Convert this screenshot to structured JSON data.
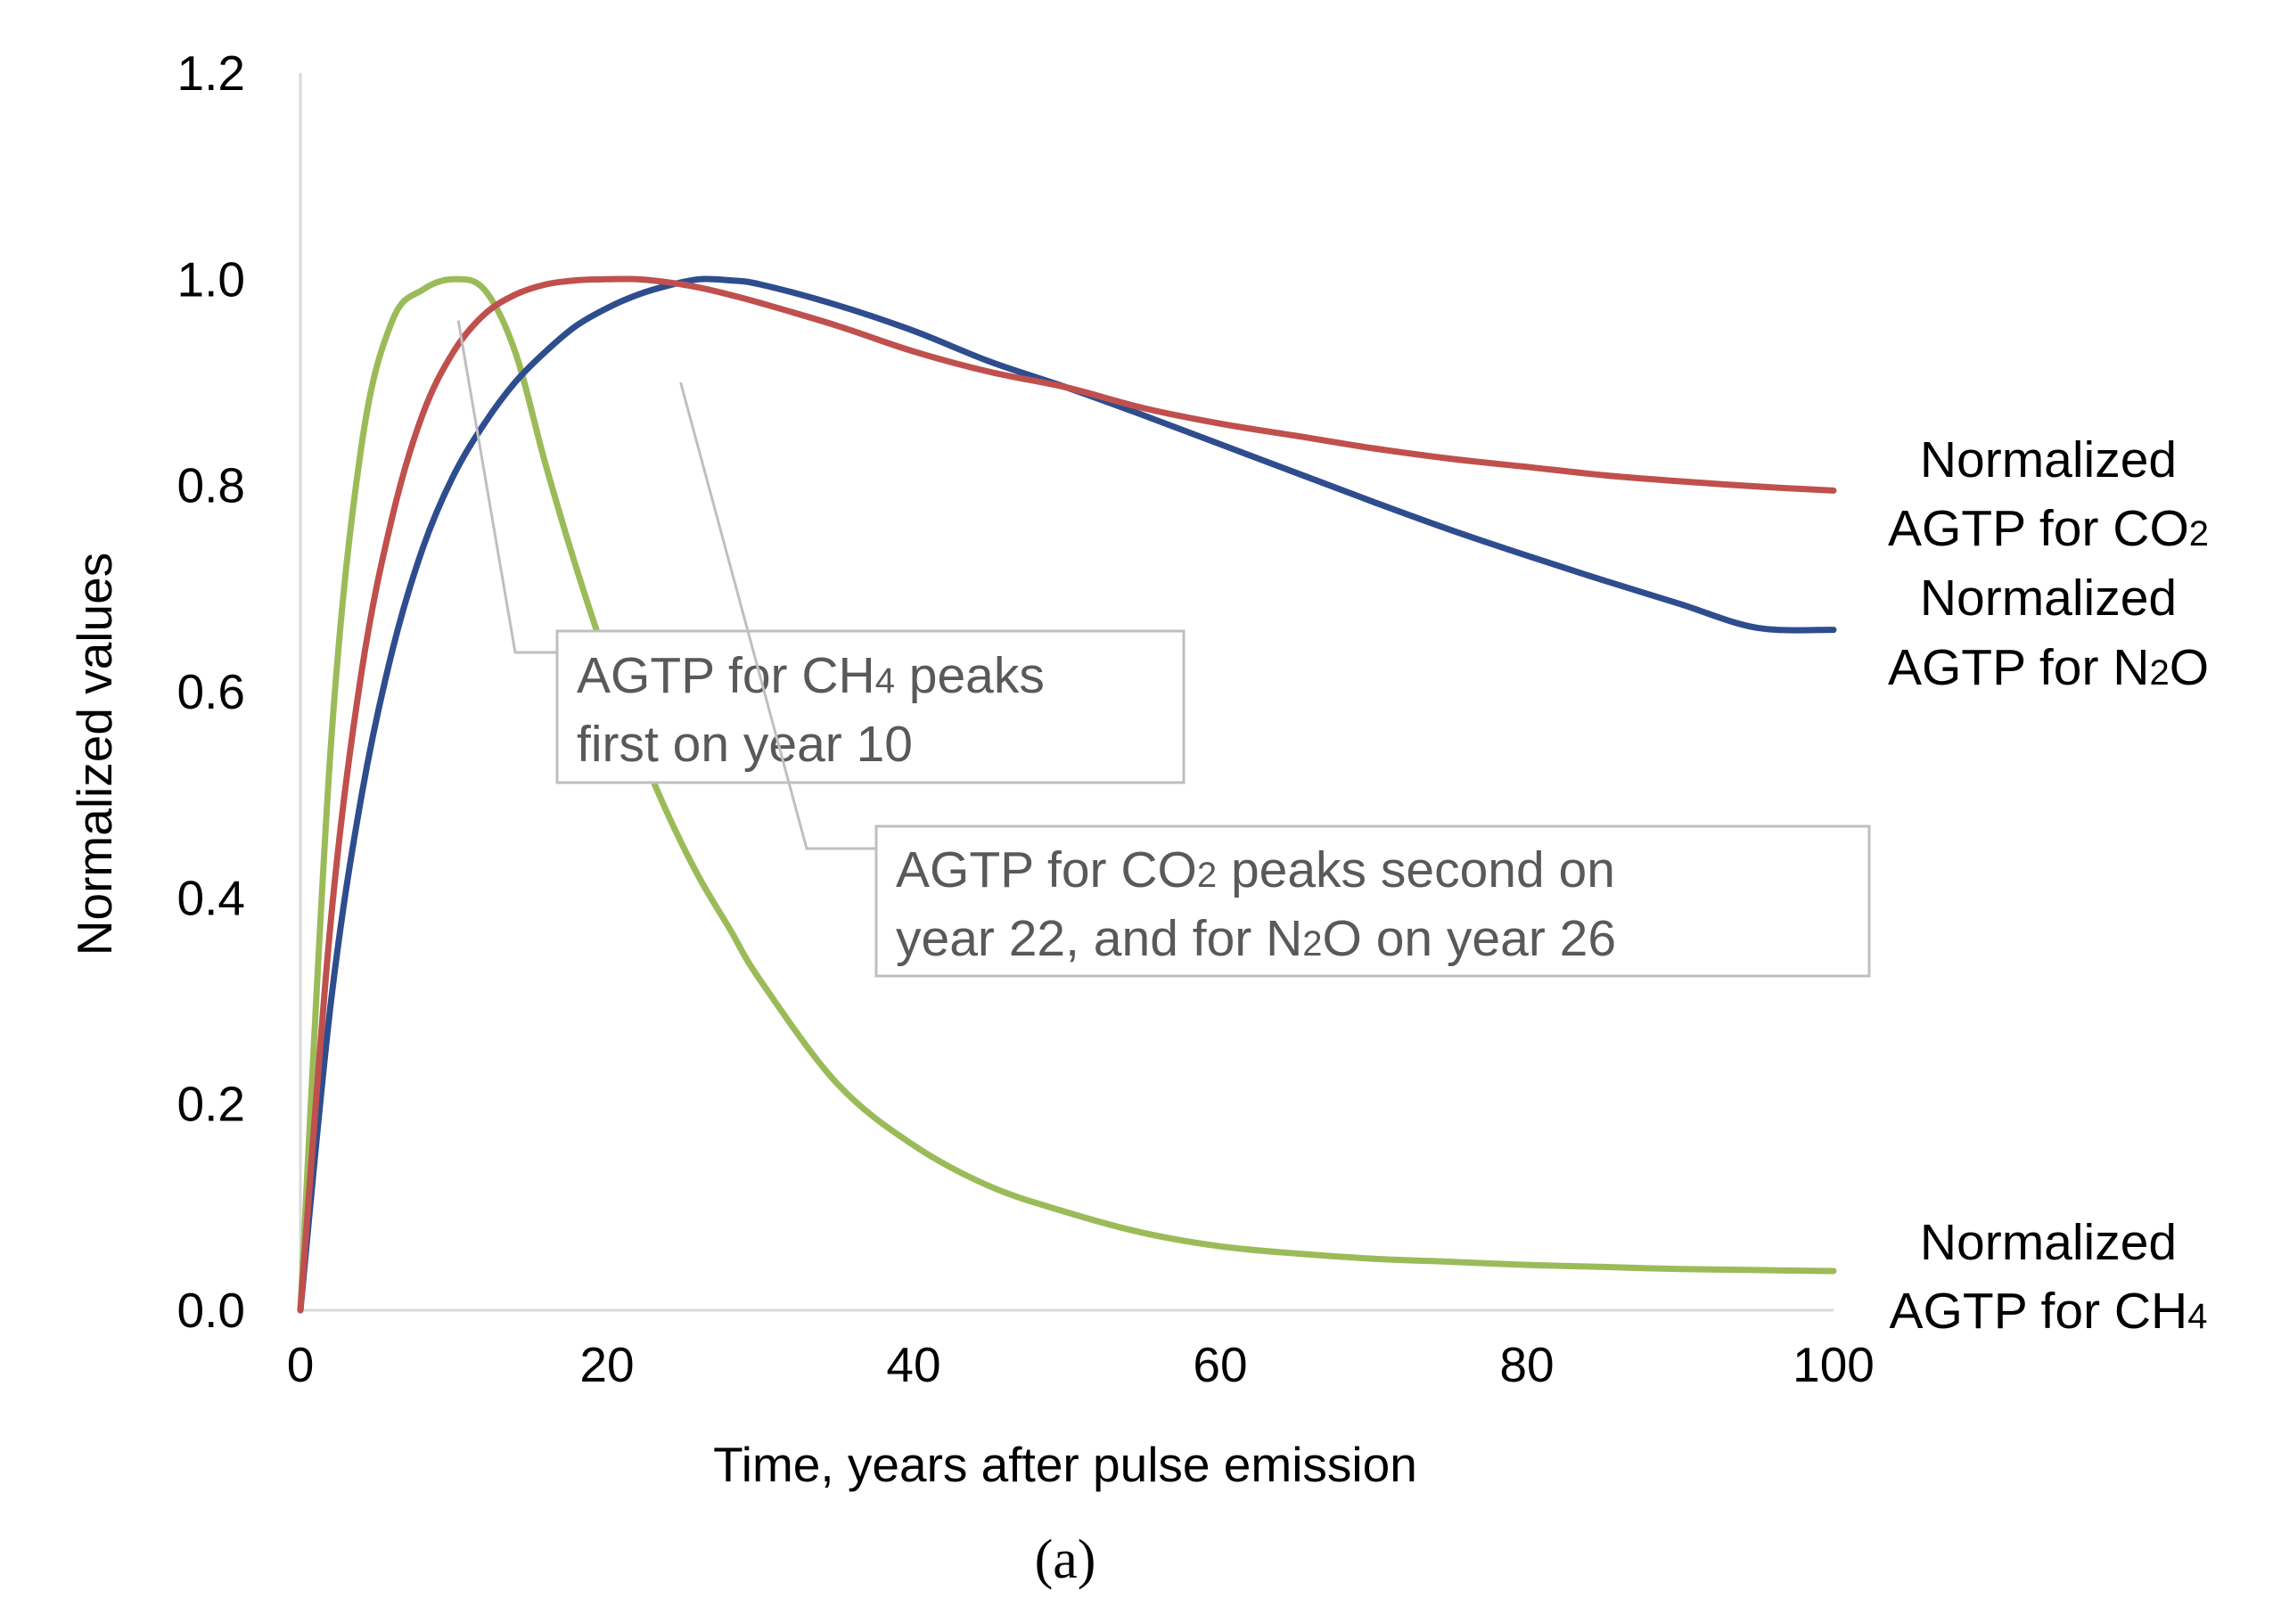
{
  "chart_data": {
    "type": "line",
    "title": "",
    "xlabel": "Time, years after pulse emission",
    "ylabel": "Normalized values",
    "xlim": [
      0,
      100
    ],
    "ylim": [
      0,
      1.2
    ],
    "xticks": [
      0,
      20,
      40,
      60,
      80,
      100
    ],
    "xtick_labels": [
      "0",
      "20",
      "40",
      "60",
      "80",
      "100"
    ],
    "yticks": [
      0,
      0.2,
      0.4,
      0.6,
      0.8,
      1.0,
      1.2
    ],
    "ytick_labels": [
      "0.0",
      "0.2",
      "0.4",
      "0.6",
      "0.8",
      "1.0",
      "1.2"
    ],
    "grid": false,
    "x": [
      0,
      2,
      4,
      6,
      8,
      10,
      12,
      14,
      16,
      18,
      20,
      22,
      24,
      26,
      28,
      30,
      35,
      40,
      45,
      50,
      55,
      60,
      65,
      70,
      75,
      80,
      85,
      90,
      95,
      100
    ],
    "series": [
      {
        "name": "Normalized AGTP for CO2",
        "color": "#c0504d",
        "values": [
          0,
          0.38,
          0.62,
          0.77,
          0.87,
          0.93,
          0.966,
          0.985,
          0.995,
          0.999,
          1.0,
          1.0,
          0.997,
          0.992,
          0.985,
          0.977,
          0.955,
          0.93,
          0.91,
          0.895,
          0.875,
          0.86,
          0.848,
          0.836,
          0.826,
          0.818,
          0.81,
          0.804,
          0.799,
          0.795
        ],
        "end_label_line1": "Normalized",
        "end_label_line2_main": "AGTP for CO",
        "end_label_line2_sub": "2"
      },
      {
        "name": "Normalized AGTP for N2O",
        "color": "#2e4d8e",
        "values": [
          0,
          0.3,
          0.5,
          0.64,
          0.74,
          0.81,
          0.86,
          0.9,
          0.93,
          0.955,
          0.972,
          0.985,
          0.994,
          1.0,
          0.999,
          0.995,
          0.975,
          0.95,
          0.92,
          0.895,
          0.868,
          0.84,
          0.812,
          0.784,
          0.757,
          0.732,
          0.708,
          0.685,
          0.662,
          0.66
        ],
        "end_label_line1": "Normalized",
        "end_label_line2_main": "AGTP for N",
        "end_label_line2_sub": "2",
        "end_label_line2_tail": "O"
      },
      {
        "name": "Normalized AGTP for CH4",
        "color": "#9bbb59",
        "values": [
          0,
          0.55,
          0.84,
          0.96,
          0.99,
          1.0,
          0.99,
          0.93,
          0.82,
          0.72,
          0.63,
          0.55,
          0.48,
          0.42,
          0.37,
          0.32,
          0.22,
          0.16,
          0.12,
          0.095,
          0.075,
          0.062,
          0.055,
          0.05,
          0.047,
          0.044,
          0.042,
          0.04,
          0.039,
          0.038
        ],
        "end_label_line1": "Normalized",
        "end_label_line2_main": "AGTP for CH",
        "end_label_line2_sub": "4"
      }
    ],
    "annotations": [
      {
        "id": "ch4-peak",
        "line1_main": "AGTP for CH",
        "line1_sub": "4",
        "line1_tail": " peaks",
        "line2": "first on year 10",
        "leader_from": [
          10.3,
          0.96
        ]
      },
      {
        "id": "co2-n2o-peak",
        "line1_main": "AGTP for CO",
        "line1_sub": "2",
        "line1_tail": " peaks second on",
        "line2_main": "year 22, and for N",
        "line2_sub": "2",
        "line2_tail": "O on year 26",
        "leader_from": [
          24.8,
          0.9
        ]
      }
    ],
    "panel_label": "(a)"
  }
}
